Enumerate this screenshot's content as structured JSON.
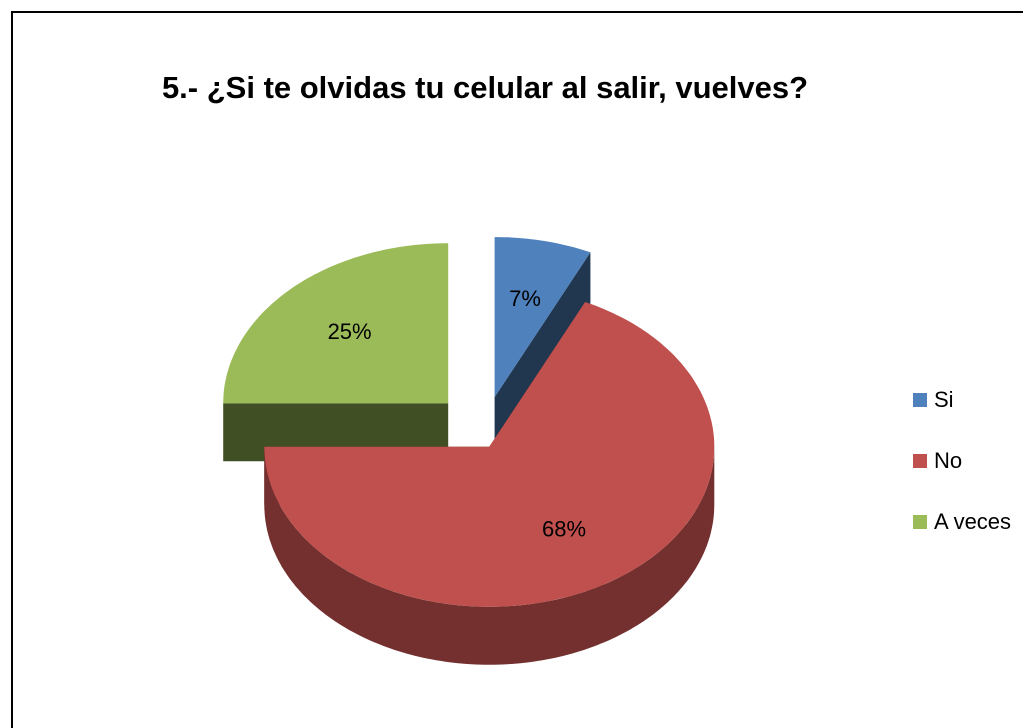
{
  "chart_data": {
    "type": "pie",
    "title": "5.- ¿Si te olvidas tu celular al salir, vuelves?",
    "categories": [
      "Si",
      "No",
      "A veces"
    ],
    "values": [
      7,
      68,
      25
    ],
    "value_labels": [
      "7%",
      "68%",
      "25%"
    ],
    "colors": [
      "#4f81bd",
      "#c0504d",
      "#9bbb59"
    ],
    "legend": "right"
  }
}
